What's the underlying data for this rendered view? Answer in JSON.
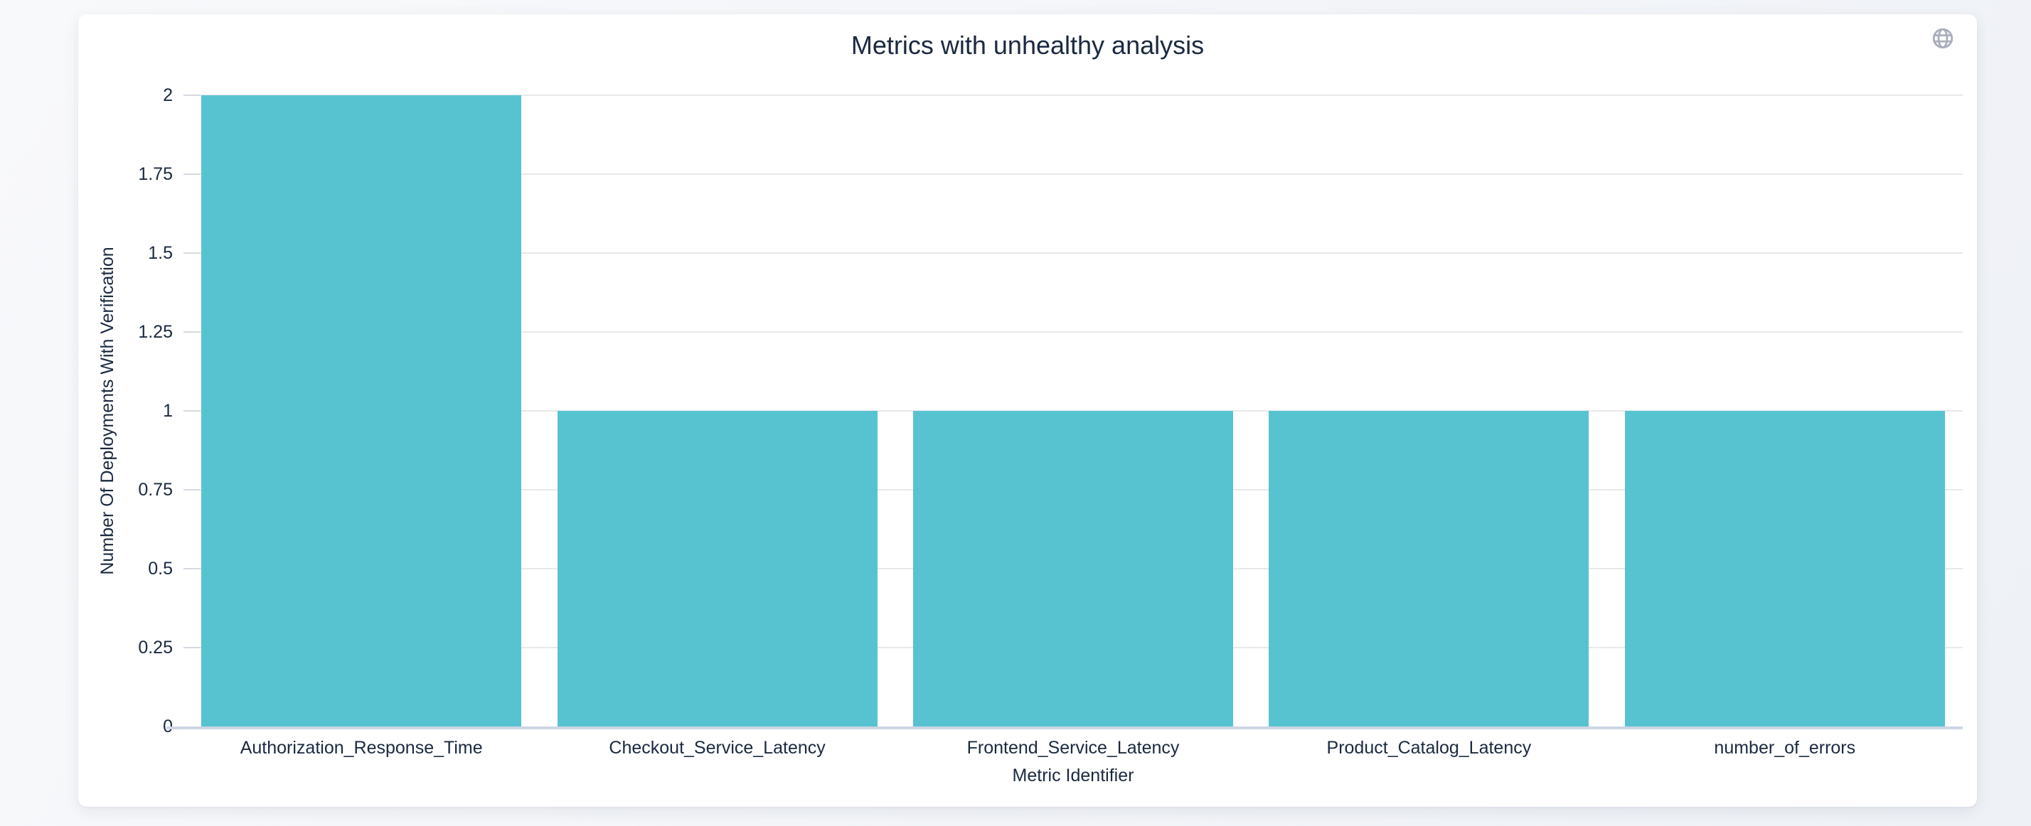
{
  "card": {
    "toolbar": {
      "globe_icon": "globe-icon"
    }
  },
  "colors": {
    "page_bg": "#f2f4f8",
    "card_bg": "#ffffff",
    "bar": "#58c3d0",
    "text": "#1a2940",
    "gridline": "#e8e8e8",
    "axis_line": "#cdd5e6",
    "axis_tick": "#d4d9e2",
    "icon": "#a9aeba"
  },
  "chart_data": {
    "type": "bar",
    "title": "Metrics with unhealthy analysis",
    "categories": [
      "Authorization_Response_Time",
      "Checkout_Service_Latency",
      "Frontend_Service_Latency",
      "Product_Catalog_Latency",
      "number_of_errors"
    ],
    "values": [
      2,
      1,
      1,
      1,
      1
    ],
    "xlabel": "Metric Identifier",
    "ylabel": "Number Of Deployments With Verification",
    "ylim": [
      0,
      2
    ],
    "ytick_interval": 0.25,
    "ytick_labels": [
      "0",
      "0.25",
      "0.5",
      "0.75",
      "1",
      "1.25",
      "1.5",
      "1.75",
      "2"
    ],
    "grid": true,
    "legend_position": "none",
    "bar_color": "#58c3d0"
  }
}
